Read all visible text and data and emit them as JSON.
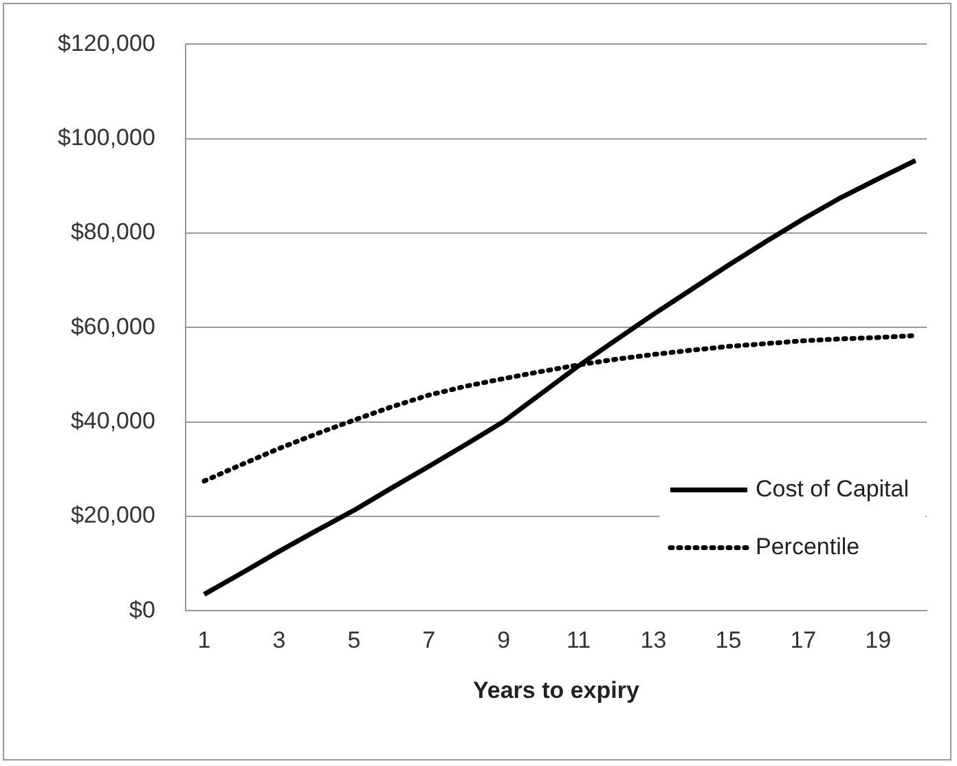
{
  "chart_data": {
    "type": "line",
    "xlabel": "Years to expiry",
    "x": [
      1,
      2,
      3,
      4,
      5,
      6,
      7,
      8,
      9,
      10,
      11,
      12,
      13,
      14,
      15,
      16,
      17,
      18,
      19,
      20
    ],
    "xlim": [
      0.5,
      20.3
    ],
    "xticks": [
      1,
      3,
      5,
      7,
      9,
      11,
      13,
      15,
      17,
      19
    ],
    "series": [
      {
        "name": "Cost of Capital",
        "color": "#000000",
        "line_style": "solid",
        "values": [
          3500,
          8000,
          12600,
          17000,
          21300,
          26000,
          30600,
          35300,
          40100,
          46000,
          51900,
          57400,
          62800,
          68000,
          73200,
          78200,
          83000,
          87500,
          91500,
          95400
        ]
      },
      {
        "name": "Percentile",
        "color": "#000000",
        "line_style": "dotted",
        "values": [
          27500,
          31000,
          34400,
          37500,
          40400,
          43200,
          45700,
          47600,
          49200,
          50700,
          52100,
          53300,
          54300,
          55200,
          56000,
          56600,
          57200,
          57600,
          57900,
          58300
        ]
      }
    ],
    "ylim": [
      0,
      120000
    ],
    "yticks": [
      {
        "value": 0,
        "label": "$0"
      },
      {
        "value": 20000,
        "label": "$20,000"
      },
      {
        "value": 40000,
        "label": "$40,000"
      },
      {
        "value": 60000,
        "label": "$60,000"
      },
      {
        "value": 80000,
        "label": "$80,000"
      },
      {
        "value": 100000,
        "label": "$100,000"
      },
      {
        "value": 120000,
        "label": "$120,000"
      }
    ],
    "grid": "y",
    "legend": "bottom right",
    "marker": "none"
  }
}
